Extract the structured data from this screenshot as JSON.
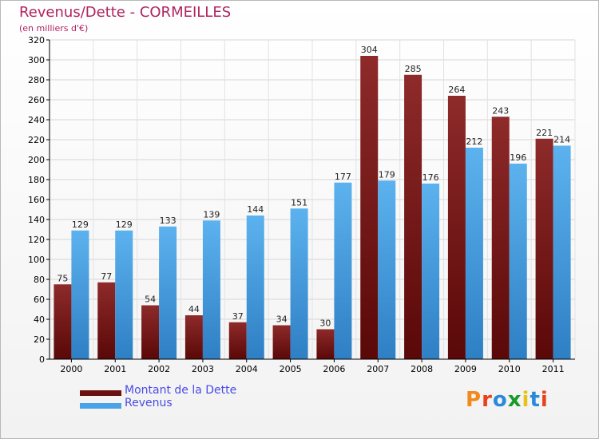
{
  "title": "Revenus/Dette - CORMEILLES",
  "subtitle": "(en milliers d'€)",
  "logo_text": "Proxiti",
  "colors": {
    "debt": "#7a1a1a",
    "revenue": "#4aa3e6",
    "title": "#b22260",
    "legend_text": "#4a4ae8"
  },
  "chart_data": {
    "type": "bar",
    "categories": [
      "2000",
      "2001",
      "2002",
      "2003",
      "2004",
      "2005",
      "2006",
      "2007",
      "2008",
      "2009",
      "2010",
      "2011"
    ],
    "series": [
      {
        "name": "Montant de la Dette",
        "values": [
          75,
          77,
          54,
          44,
          37,
          34,
          30,
          304,
          285,
          264,
          243,
          221
        ]
      },
      {
        "name": "Revenus",
        "values": [
          129,
          129,
          133,
          139,
          144,
          151,
          177,
          179,
          176,
          212,
          196,
          214
        ]
      }
    ],
    "ylim": [
      0,
      320
    ],
    "yticks": [
      0,
      20,
      40,
      60,
      80,
      100,
      120,
      140,
      160,
      180,
      200,
      220,
      240,
      260,
      280,
      300,
      320
    ],
    "grid": true,
    "legend": "bottom-left"
  }
}
